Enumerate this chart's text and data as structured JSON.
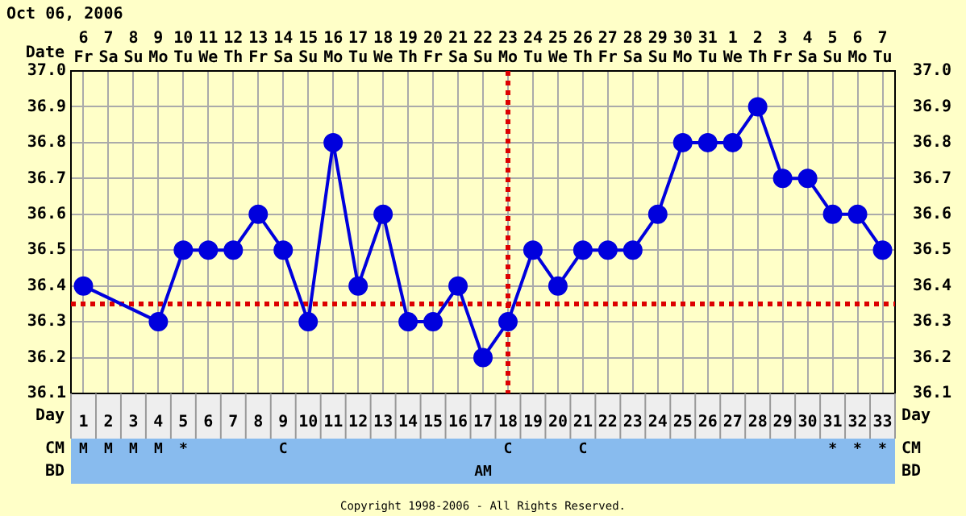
{
  "chart_data": [
    {
      "type": "line",
      "title": "Oct 06, 2006",
      "xlabel": "Date",
      "x2label": "Day",
      "categories": [
        "6 Fr",
        "7 Sa",
        "8 Su",
        "9 Mo",
        "10 Tu",
        "11 We",
        "12 Th",
        "13 Fr",
        "14 Sa",
        "15 Su",
        "16 Mo",
        "17 Tu",
        "18 We",
        "19 Th",
        "20 Fr",
        "21 Sa",
        "22 Su",
        "23 Mo",
        "24 Tu",
        "25 We",
        "26 Th",
        "27 Fr",
        "28 Sa",
        "29 Su",
        "30 Mo",
        "31 Tu",
        "1 We",
        "2 Th",
        "3 Fr",
        "4 Sa",
        "5 Su",
        "6 Mo",
        "7 Tu"
      ],
      "values": [
        36.4,
        null,
        null,
        36.3,
        36.5,
        36.5,
        36.5,
        36.6,
        36.5,
        36.3,
        36.8,
        36.4,
        36.6,
        36.3,
        36.3,
        36.4,
        36.2,
        36.3,
        36.5,
        36.4,
        36.5,
        36.5,
        36.5,
        36.6,
        36.8,
        36.8,
        36.8,
        36.9,
        36.7,
        36.7,
        36.6,
        36.6,
        36.5
      ],
      "color": "#0000dd",
      "marker": "circle",
      "line_style": "solid",
      "grid": true,
      "ylim": [
        36.1,
        37.0
      ],
      "yticks": [
        36.1,
        36.2,
        36.3,
        36.4,
        36.5,
        36.6,
        36.7,
        36.8,
        36.9,
        {
          "value": 37.0,
          "label": "37.0"
        }
      ],
      "y2lim": [
        36.1,
        37.0
      ],
      "y2ticks": [
        36.1,
        36.2,
        36.3,
        36.4,
        36.5,
        36.6,
        36.7,
        36.8,
        36.9,
        {
          "value": 37.0,
          "label": "37.0"
        }
      ],
      "x2lim": [
        0.5,
        33.5
      ],
      "x2ticks": [
        1,
        2,
        3,
        4,
        5,
        6,
        7,
        8,
        9,
        10,
        11,
        12,
        13,
        14,
        15,
        16,
        17,
        18,
        19,
        20,
        21,
        22,
        23,
        24,
        25,
        26,
        27,
        28,
        29,
        30,
        31,
        32,
        33
      ],
      "ref_lines": [
        {
          "axis": "y",
          "value": 36.35,
          "color": "#dd0000",
          "line_style": "dotted"
        },
        {
          "axis": "x",
          "value": "23 Mo",
          "color": "#dd0000",
          "line_style": "dotted"
        }
      ],
      "annotations": [
        "Copyright 1998-2006 - All Rights Reserved."
      ]
    },
    {
      "type": "heatmap",
      "categories": [
        null,
        null,
        null,
        null,
        null,
        null,
        null,
        null,
        null,
        null,
        null,
        null,
        null,
        null,
        null,
        null,
        null,
        null,
        null,
        null,
        null,
        null,
        null,
        null,
        null,
        null,
        null,
        null,
        null,
        null,
        null,
        null,
        null
      ],
      "y_categories": [
        "CM",
        "BD"
      ],
      "y2_categories": [
        "CM",
        "BD"
      ],
      "cells": [
        [
          null,
          null,
          null,
          null,
          null,
          null,
          null,
          null,
          null,
          null,
          null,
          null,
          null,
          null,
          null,
          null,
          null,
          null,
          null,
          null,
          null,
          null,
          null,
          null,
          null,
          null,
          null,
          null,
          null,
          null,
          null,
          null,
          null
        ],
        [
          null,
          null,
          null,
          null,
          null,
          null,
          null,
          null,
          null,
          null,
          null,
          null,
          null,
          null,
          null,
          null,
          null,
          null,
          null,
          null,
          null,
          null,
          null,
          null,
          null,
          null,
          null,
          null,
          null,
          null,
          null,
          null,
          null
        ]
      ],
      "cell_labels": [
        [
          "M",
          "M",
          "M",
          "M",
          "*",
          null,
          null,
          null,
          "C",
          null,
          null,
          null,
          null,
          null,
          null,
          null,
          null,
          "C",
          null,
          null,
          "C",
          null,
          null,
          null,
          null,
          null,
          null,
          null,
          null,
          null,
          "*",
          "*",
          "*"
        ],
        [
          null,
          null,
          null,
          null,
          null,
          null,
          null,
          null,
          null,
          null,
          null,
          null,
          null,
          null,
          null,
          null,
          "AM",
          null,
          null,
          null,
          null,
          null,
          null,
          null,
          null,
          null,
          null,
          null,
          null,
          null,
          null,
          null,
          null
        ]
      ]
    }
  ]
}
